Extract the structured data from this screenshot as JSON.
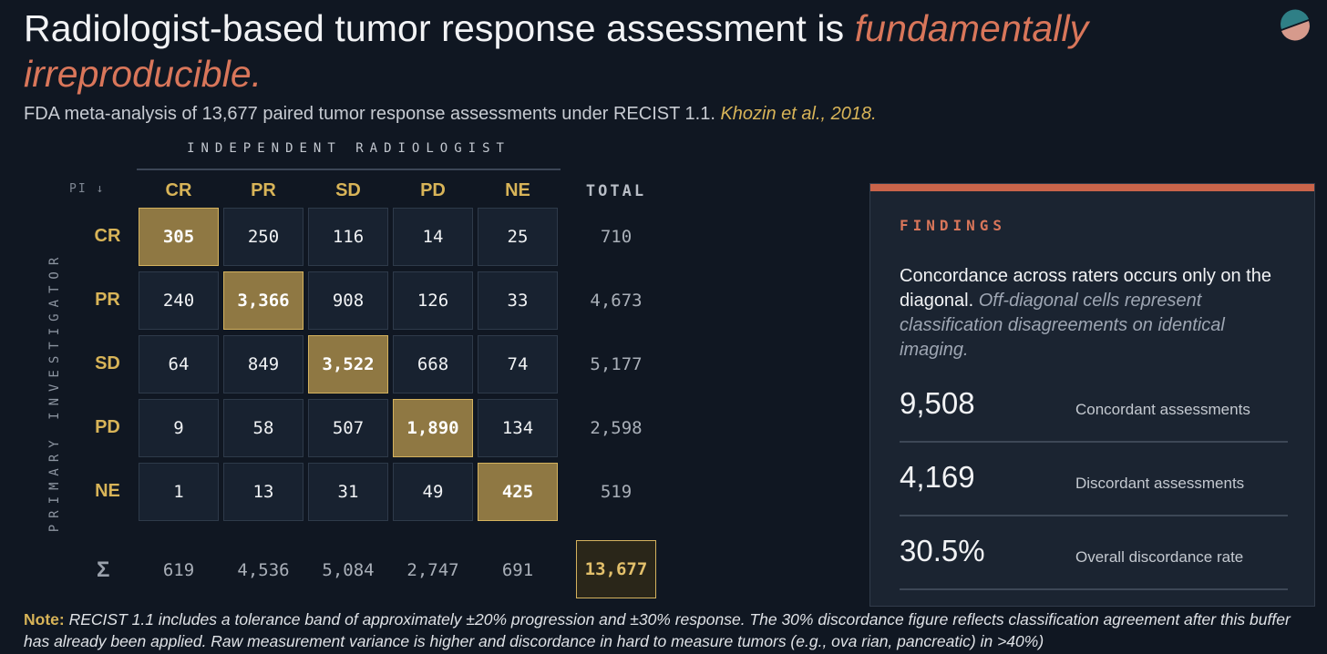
{
  "header": {
    "title_main": "Radiologist-based tumor response assessment is ",
    "title_accent": "fundamentally irreproducible.",
    "subtitle_main": "FDA meta-analysis of 13,677 paired tumor response assessments under RECIST 1.1. ",
    "subtitle_cite": "Khozin et al., 2018."
  },
  "colors": {
    "background": "#101722",
    "accent_coral": "#d9765a",
    "accent_gold": "#d8b458",
    "diagonal_fill": "#8f7843",
    "cell_fill": "#182230"
  },
  "logo": {
    "icon": "split-circle-logo-icon"
  },
  "chart_data": {
    "type": "table",
    "column_group_label": "INDEPENDENT RADIOLOGIST",
    "row_group_label": "PRIMARY INVESTIGATOR",
    "corner_label": "PI ↓",
    "total_label": "TOTAL",
    "sum_symbol": "Σ",
    "columns": [
      "CR",
      "PR",
      "SD",
      "PD",
      "NE"
    ],
    "rows": [
      "CR",
      "PR",
      "SD",
      "PD",
      "NE"
    ],
    "values": [
      [
        "305",
        "250",
        "116",
        "14",
        "25"
      ],
      [
        "240",
        "3,366",
        "908",
        "126",
        "33"
      ],
      [
        "64",
        "849",
        "3,522",
        "668",
        "74"
      ],
      [
        "9",
        "58",
        "507",
        "1,890",
        "134"
      ],
      [
        "1",
        "13",
        "31",
        "49",
        "425"
      ]
    ],
    "row_totals": [
      "710",
      "4,673",
      "5,177",
      "2,598",
      "519"
    ],
    "column_totals": [
      "619",
      "4,536",
      "5,084",
      "2,747",
      "691"
    ],
    "grand_total": "13,677"
  },
  "findings": {
    "title": "FINDINGS",
    "text_main": "Concordance across raters occurs only on the diagonal. ",
    "text_italic": "Off-diagonal cells represent classification disagreements on identical imaging.",
    "stats": [
      {
        "value": "9,508",
        "label": "Concordant assessments"
      },
      {
        "value": "4,169",
        "label": "Discordant assessments"
      },
      {
        "value": "30.5%",
        "label": "Overall discordance rate"
      }
    ]
  },
  "note": {
    "label": "Note:",
    "text": " RECIST 1.1 includes a tolerance band of approximately ±20% progression and ±30% response. The 30% discordance figure reflects classification agreement after this buffer has already been applied. Raw measurement variance is higher and discordance in hard to measure tumors (e.g., ova rian, pancreatic) in >40%)"
  }
}
